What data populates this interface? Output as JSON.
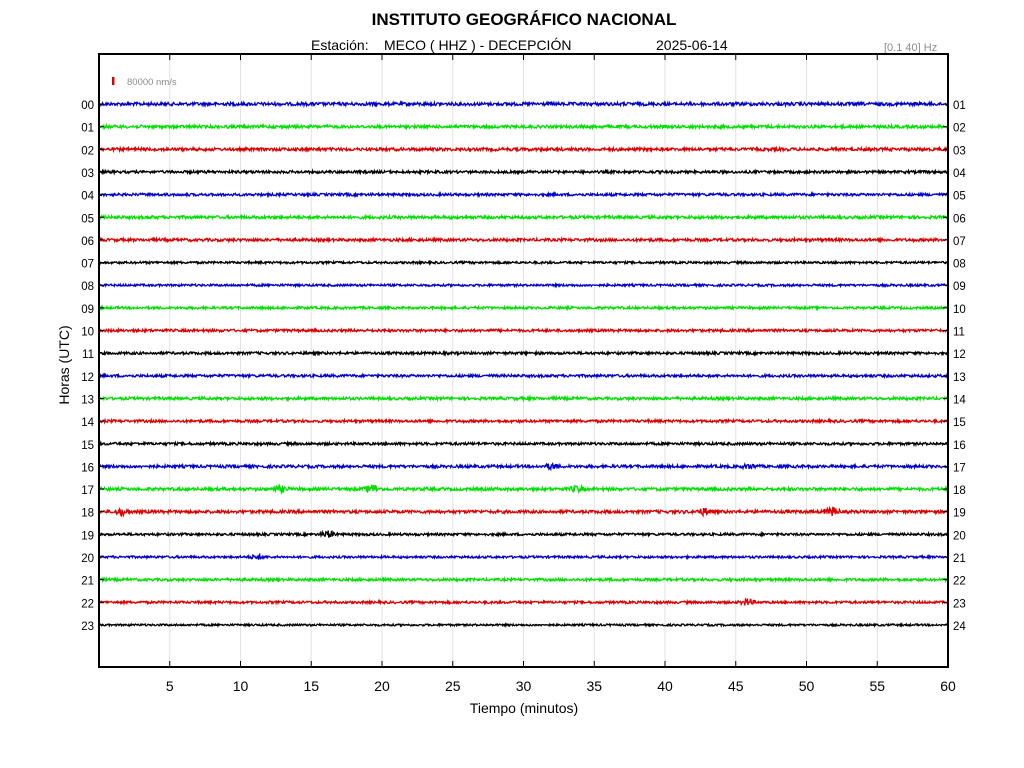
{
  "header": {
    "title": "INSTITUTO GEOGRÁFICO NACIONAL",
    "station_label": "Estación:",
    "station": "MECO ( HHZ ) - DECEPCIÓN",
    "date": "2025-06-14",
    "filter": "[0.1 40] Hz"
  },
  "chart_data": {
    "type": "line",
    "description_kind": "helicorder",
    "xlabel": "Tiempo (minutos)",
    "ylabel": "Horas (UTC)",
    "xlim": [
      0,
      60
    ],
    "x_ticks": [
      5,
      10,
      15,
      20,
      25,
      30,
      35,
      40,
      45,
      50,
      55,
      60
    ],
    "left_labels": [
      "00",
      "01",
      "02",
      "03",
      "04",
      "05",
      "06",
      "07",
      "08",
      "09",
      "10",
      "11",
      "12",
      "13",
      "14",
      "15",
      "16",
      "17",
      "18",
      "19",
      "20",
      "21",
      "22",
      "23"
    ],
    "right_labels": [
      "01",
      "02",
      "03",
      "04",
      "05",
      "06",
      "07",
      "08",
      "09",
      "10",
      "11",
      "12",
      "13",
      "14",
      "15",
      "16",
      "17",
      "18",
      "19",
      "20",
      "21",
      "22",
      "23",
      "24"
    ],
    "trace_colors": [
      "#0000cc",
      "#00e000",
      "#dd0000",
      "#000000"
    ],
    "scale_bar": {
      "label": "80000 nm/s",
      "color": "#dd0000"
    },
    "grid": true,
    "traces": [
      {
        "hour": "00",
        "noise": 1.6,
        "events": []
      },
      {
        "hour": "01",
        "noise": 1.5,
        "events": []
      },
      {
        "hour": "02",
        "noise": 1.5,
        "events": []
      },
      {
        "hour": "03",
        "noise": 1.3,
        "events": []
      },
      {
        "hour": "04",
        "noise": 1.3,
        "events": []
      },
      {
        "hour": "05",
        "noise": 1.5,
        "events": []
      },
      {
        "hour": "06",
        "noise": 1.4,
        "events": []
      },
      {
        "hour": "07",
        "noise": 1.1,
        "events": []
      },
      {
        "hour": "08",
        "noise": 1.1,
        "events": []
      },
      {
        "hour": "09",
        "noise": 1.2,
        "events": []
      },
      {
        "hour": "10",
        "noise": 1.3,
        "events": []
      },
      {
        "hour": "11",
        "noise": 1.3,
        "events": []
      },
      {
        "hour": "12",
        "noise": 1.3,
        "events": []
      },
      {
        "hour": "13",
        "noise": 1.4,
        "events": []
      },
      {
        "hour": "14",
        "noise": 1.3,
        "events": []
      },
      {
        "hour": "15",
        "noise": 1.3,
        "events": []
      },
      {
        "hour": "16",
        "noise": 1.4,
        "events": [
          [
            32,
            2.5
          ],
          [
            46,
            2
          ]
        ]
      },
      {
        "hour": "17",
        "noise": 1.5,
        "events": [
          [
            12.8,
            3
          ],
          [
            19.3,
            4
          ],
          [
            33.8,
            2.5
          ]
        ]
      },
      {
        "hour": "18",
        "noise": 1.5,
        "events": [
          [
            1.6,
            3
          ],
          [
            42.8,
            3
          ],
          [
            51.8,
            4
          ]
        ]
      },
      {
        "hour": "19",
        "noise": 1.2,
        "events": [
          [
            16.2,
            3
          ]
        ]
      },
      {
        "hour": "20",
        "noise": 1.1,
        "events": [
          [
            11.2,
            2
          ]
        ]
      },
      {
        "hour": "21",
        "noise": 1.3,
        "events": []
      },
      {
        "hour": "22",
        "noise": 1.2,
        "events": [
          [
            45.8,
            3
          ]
        ]
      },
      {
        "hour": "23",
        "noise": 1.0,
        "events": []
      }
    ]
  }
}
